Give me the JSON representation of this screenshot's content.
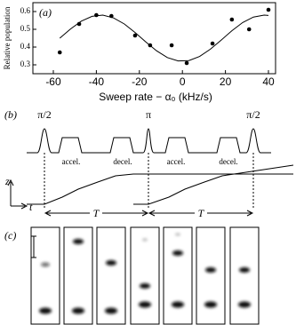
{
  "chart_data": {
    "type": "scatter",
    "label": "(a)",
    "ylabel": "Relative population",
    "xlabel": "Sweep rate − α₀ (kHz/s)",
    "x": [
      -57,
      -48,
      -40,
      -33,
      -22,
      -15,
      -5,
      2,
      14,
      23,
      31,
      40
    ],
    "values": [
      0.37,
      0.53,
      0.58,
      0.575,
      0.465,
      0.41,
      0.41,
      0.31,
      0.42,
      0.555,
      0.5,
      0.61
    ],
    "fit": {
      "x": [
        -57,
        -52,
        -47,
        -42,
        -37,
        -32,
        -27,
        -22,
        -17,
        -12,
        -7,
        -2,
        3,
        8,
        13,
        18,
        23,
        28,
        33,
        38,
        40
      ],
      "values": [
        0.45,
        0.502,
        0.546,
        0.573,
        0.58,
        0.564,
        0.53,
        0.482,
        0.429,
        0.379,
        0.341,
        0.322,
        0.324,
        0.347,
        0.388,
        0.439,
        0.492,
        0.538,
        0.569,
        0.58,
        0.578
      ]
    },
    "xlim": [
      -69.5,
      43.3
    ],
    "ylim": [
      0.25,
      0.65
    ],
    "xticks": [
      -60,
      -40,
      -20,
      0,
      20,
      40
    ],
    "yticks": [
      0.3,
      0.4,
      0.5,
      0.6
    ],
    "color": "#000000"
  },
  "diagram": {
    "label": "(b)",
    "pulses": [
      "π/2",
      "π",
      "π/2"
    ],
    "stages": [
      "accel.",
      "decel.",
      "accel.",
      "decel."
    ],
    "z_axis": "z",
    "t_axis": "t",
    "intervals": [
      "T",
      "T"
    ]
  },
  "images": {
    "label": "(c)"
  }
}
